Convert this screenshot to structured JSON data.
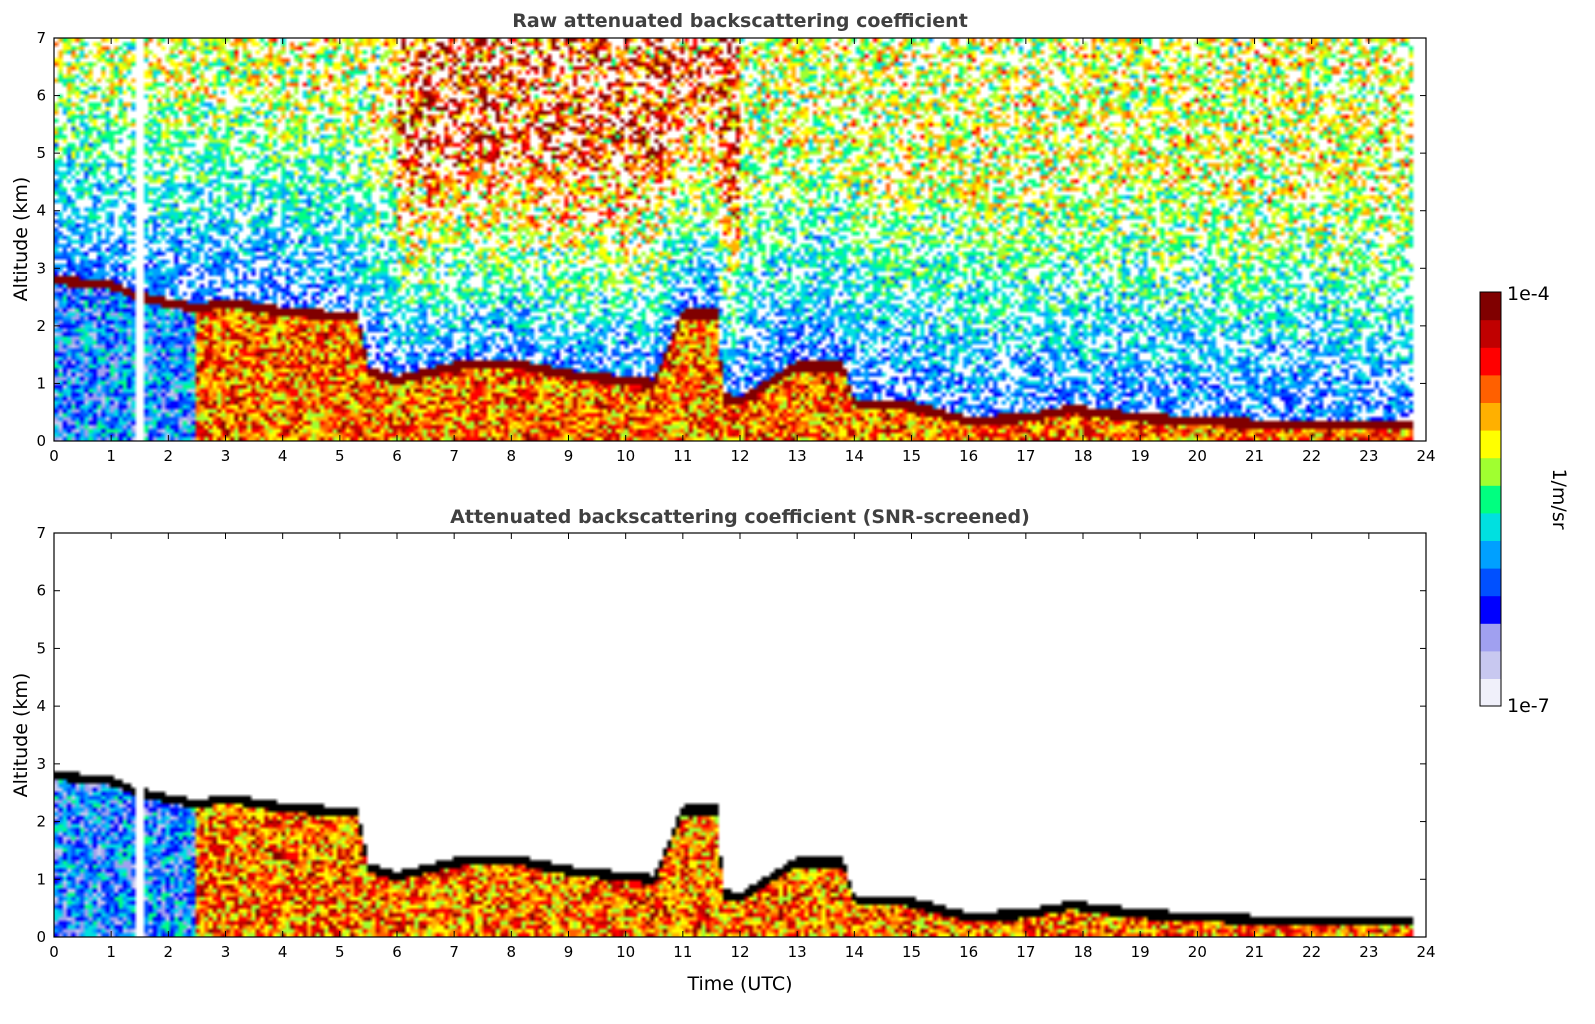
{
  "chart_data": [
    {
      "type": "heatmap",
      "title": "Raw attenuated backscattering coefficient",
      "xlabel": "",
      "ylabel": "Altitude (km)",
      "xlim": [
        0,
        24
      ],
      "ylim": [
        0,
        7
      ],
      "x_ticks": [
        "0",
        "1",
        "2",
        "3",
        "4",
        "5",
        "6",
        "7",
        "8",
        "9",
        "10",
        "11",
        "12",
        "13",
        "14",
        "15",
        "16",
        "17",
        "18",
        "19",
        "20",
        "21",
        "22",
        "23",
        "24"
      ],
      "y_ticks": [
        "0",
        "1",
        "2",
        "3",
        "4",
        "5",
        "6",
        "7"
      ],
      "screened": false,
      "data_gap_hours": [
        1.45,
        1.55
      ],
      "data_end_hour": 23.8,
      "layer_top_km": [
        [
          0,
          2.8
        ],
        [
          1,
          2.7
        ],
        [
          1.5,
          2.5
        ],
        [
          2.5,
          2.3
        ],
        [
          3,
          2.4
        ],
        [
          4,
          2.25
        ],
        [
          5.3,
          2.15
        ],
        [
          5.5,
          1.2
        ],
        [
          6,
          1.05
        ],
        [
          7,
          1.3
        ],
        [
          8,
          1.35
        ],
        [
          9,
          1.15
        ],
        [
          10,
          1.05
        ],
        [
          10.5,
          1.0
        ],
        [
          11,
          2.2
        ],
        [
          11.6,
          2.2
        ],
        [
          11.7,
          0.75
        ],
        [
          12,
          0.7
        ],
        [
          13,
          1.3
        ],
        [
          13.8,
          1.3
        ],
        [
          14,
          0.65
        ],
        [
          15,
          0.6
        ],
        [
          16,
          0.35
        ],
        [
          17,
          0.4
        ],
        [
          17.8,
          0.55
        ],
        [
          19,
          0.4
        ],
        [
          21,
          0.3
        ],
        [
          23.8,
          0.3
        ]
      ]
    },
    {
      "type": "heatmap",
      "title": "Attenuated backscattering coefficient (SNR-screened)",
      "xlabel": "Time (UTC)",
      "ylabel": "Altitude (km)",
      "xlim": [
        0,
        24
      ],
      "ylim": [
        0,
        7
      ],
      "x_ticks": [
        "0",
        "1",
        "2",
        "3",
        "4",
        "5",
        "6",
        "7",
        "8",
        "9",
        "10",
        "11",
        "12",
        "13",
        "14",
        "15",
        "16",
        "17",
        "18",
        "19",
        "20",
        "21",
        "22",
        "23",
        "24"
      ],
      "y_ticks": [
        "0",
        "1",
        "2",
        "3",
        "4",
        "5",
        "6",
        "7"
      ],
      "screened": true,
      "data_gap_hours": [
        1.45,
        1.55
      ],
      "data_end_hour": 23.8,
      "layer_top_km": [
        [
          0,
          2.8
        ],
        [
          1,
          2.7
        ],
        [
          1.5,
          2.5
        ],
        [
          2.5,
          2.3
        ],
        [
          3,
          2.4
        ],
        [
          4,
          2.25
        ],
        [
          5.3,
          2.15
        ],
        [
          5.5,
          1.2
        ],
        [
          6,
          1.05
        ],
        [
          7,
          1.3
        ],
        [
          8,
          1.35
        ],
        [
          9,
          1.15
        ],
        [
          10,
          1.05
        ],
        [
          10.5,
          1.0
        ],
        [
          11,
          2.2
        ],
        [
          11.6,
          2.2
        ],
        [
          11.7,
          0.75
        ],
        [
          12,
          0.7
        ],
        [
          13,
          1.3
        ],
        [
          13.8,
          1.3
        ],
        [
          14,
          0.65
        ],
        [
          15,
          0.6
        ],
        [
          16,
          0.35
        ],
        [
          17,
          0.4
        ],
        [
          17.8,
          0.55
        ],
        [
          19,
          0.4
        ],
        [
          21,
          0.3
        ],
        [
          23.8,
          0.3
        ]
      ]
    }
  ],
  "colorbar": {
    "max_label": "1e-4",
    "min_label": "1e-7",
    "label": "1/m/sr",
    "colors": [
      "#f0f0fa",
      "#c8c8f0",
      "#a0a0f0",
      "#0000ff",
      "#0050ff",
      "#00a0ff",
      "#00e0e0",
      "#00ff80",
      "#a0ff30",
      "#ffff00",
      "#ffb000",
      "#ff6000",
      "#ff0000",
      "#c00000",
      "#800000"
    ]
  }
}
